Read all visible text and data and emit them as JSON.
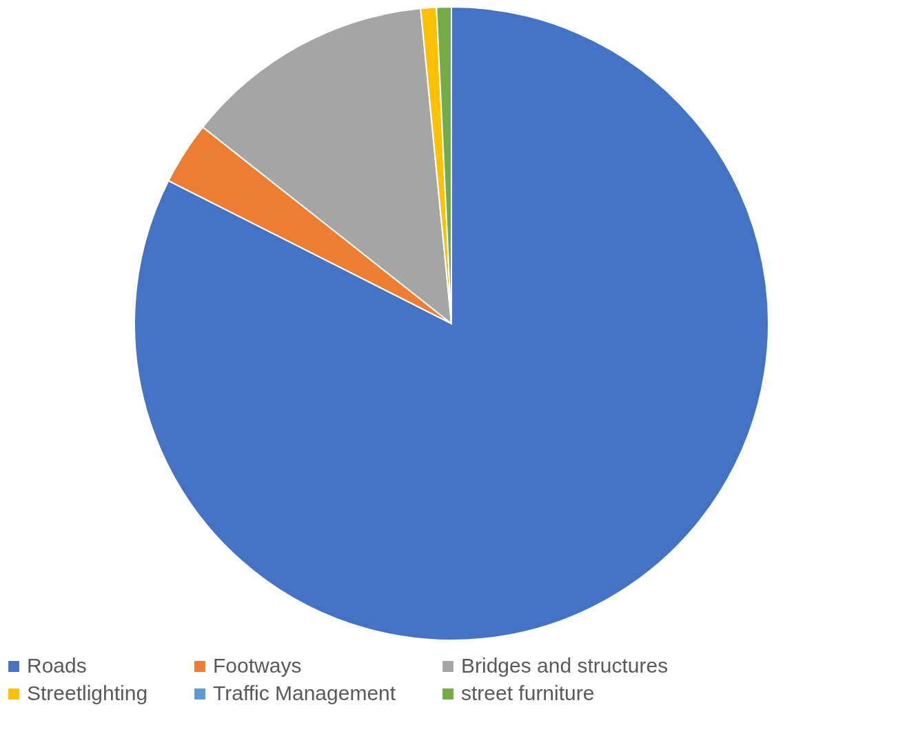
{
  "chart_data": {
    "type": "pie",
    "categories": [
      "Roads",
      "Footways",
      "Bridges and structures",
      "Streetlighting",
      "Traffic Management",
      "street furniture"
    ],
    "values": [
      82.45,
      3.2,
      12.8,
      0.8,
      0,
      0.75
    ],
    "colors": [
      "#4472c4",
      "#ed7d31",
      "#a5a5a5",
      "#ffc000",
      "#5b9bd5",
      "#70ad47"
    ],
    "legend": "bottom"
  }
}
